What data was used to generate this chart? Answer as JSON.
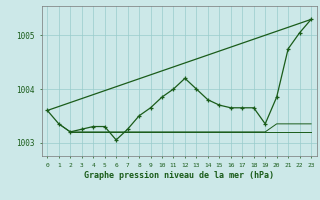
{
  "title": "Graphe pression niveau de la mer (hPa)",
  "background_color": "#cce8e8",
  "grid_color": "#99cccc",
  "line_color": "#1a5c1a",
  "xlim": [
    -0.5,
    23.5
  ],
  "ylim": [
    1002.75,
    1005.55
  ],
  "yticks": [
    1003,
    1004,
    1005
  ],
  "xticks": [
    0,
    1,
    2,
    3,
    4,
    5,
    6,
    7,
    8,
    9,
    10,
    11,
    12,
    13,
    14,
    15,
    16,
    17,
    18,
    19,
    20,
    21,
    22,
    23
  ],
  "main_line": {
    "x": [
      0,
      1,
      2,
      3,
      4,
      5,
      6,
      7,
      8,
      9,
      10,
      11,
      12,
      13,
      14,
      15,
      16,
      17,
      18,
      19,
      20,
      21,
      22,
      23
    ],
    "y": [
      1003.6,
      1003.35,
      1003.2,
      1003.25,
      1003.3,
      1003.3,
      1003.05,
      1003.25,
      1003.5,
      1003.65,
      1003.85,
      1004.0,
      1004.2,
      1004.0,
      1003.8,
      1003.7,
      1003.65,
      1003.65,
      1003.65,
      1003.35,
      1003.85,
      1004.75,
      1005.05,
      1005.3
    ]
  },
  "straight_line": {
    "x": [
      0,
      23
    ],
    "y": [
      1003.6,
      1005.3
    ]
  },
  "flat_line1": {
    "x": [
      1,
      2,
      3,
      4,
      5,
      6,
      7,
      8,
      9,
      10,
      11,
      12,
      13,
      14,
      15,
      16,
      17,
      18,
      19,
      20,
      21,
      22,
      23
    ],
    "y": [
      1003.35,
      1003.2,
      1003.2,
      1003.2,
      1003.2,
      1003.2,
      1003.2,
      1003.2,
      1003.2,
      1003.2,
      1003.2,
      1003.2,
      1003.2,
      1003.2,
      1003.2,
      1003.2,
      1003.2,
      1003.2,
      1003.2,
      1003.35,
      1003.35,
      1003.35,
      1003.35
    ]
  },
  "flat_line2": {
    "x": [
      2,
      3,
      4,
      5,
      6,
      7,
      8,
      9,
      10,
      11,
      12,
      13,
      14,
      15,
      16,
      17,
      18,
      19,
      20,
      21,
      22,
      23
    ],
    "y": [
      1003.2,
      1003.2,
      1003.2,
      1003.2,
      1003.2,
      1003.2,
      1003.2,
      1003.2,
      1003.2,
      1003.2,
      1003.2,
      1003.2,
      1003.2,
      1003.2,
      1003.2,
      1003.2,
      1003.2,
      1003.2,
      1003.2,
      1003.2,
      1003.2,
      1003.2
    ]
  }
}
